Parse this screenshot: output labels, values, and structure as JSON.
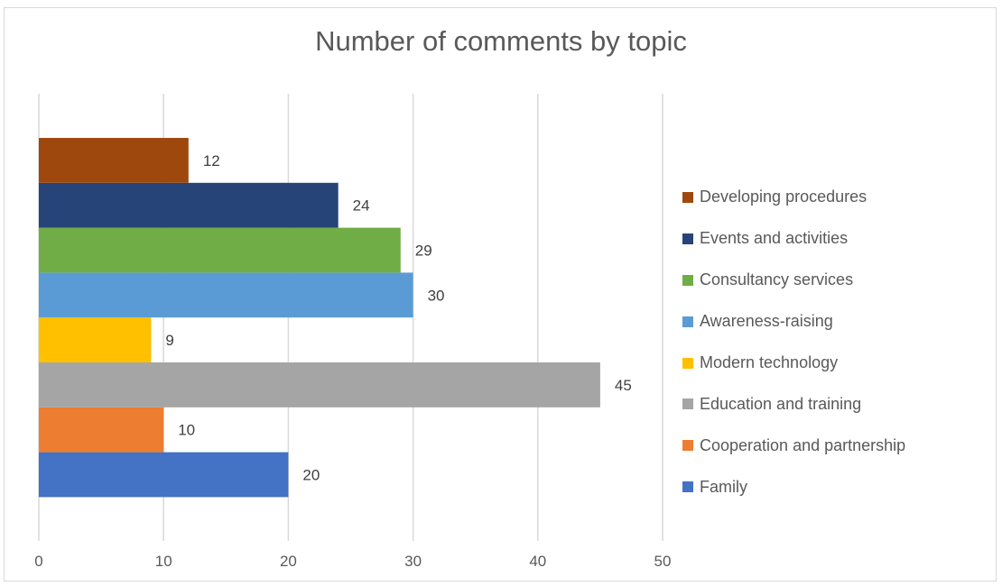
{
  "chart_data": {
    "type": "bar",
    "orientation": "horizontal",
    "title": "Number of comments by topic",
    "xlim": [
      0,
      50
    ],
    "x_ticks": [
      0,
      10,
      20,
      30,
      40,
      50
    ],
    "grid": true,
    "legend_position": "right",
    "series": [
      {
        "name": "Family",
        "value": 20,
        "color": "#4472C4"
      },
      {
        "name": "Cooperation and partnership",
        "value": 10,
        "color": "#ED7D31"
      },
      {
        "name": "Education and training",
        "value": 45,
        "color": "#A5A5A5"
      },
      {
        "name": "Modern technology",
        "value": 9,
        "color": "#FFC000"
      },
      {
        "name": "Awareness-raising",
        "value": 30,
        "color": "#5B9BD5"
      },
      {
        "name": "Consultancy services",
        "value": 29,
        "color": "#70AD47"
      },
      {
        "name": "Events and activities",
        "value": 24,
        "color": "#264478"
      },
      {
        "name": "Developing procedures",
        "value": 12,
        "color": "#9E480E"
      }
    ]
  }
}
